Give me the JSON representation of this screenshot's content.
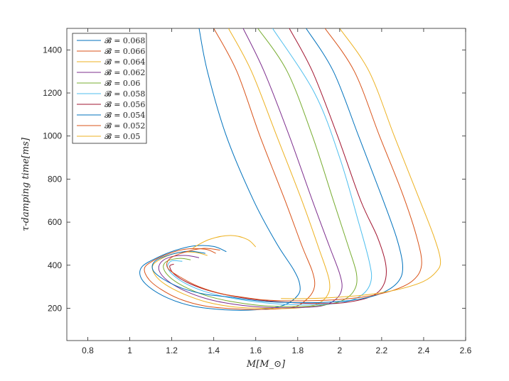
{
  "chart_data": {
    "type": "line",
    "xlabel": "M[M_⊙]",
    "ylabel": "τ-damping time[ms]",
    "xlim": [
      0.7,
      2.6
    ],
    "ylim": [
      50,
      1500
    ],
    "xticks": [
      "0.8",
      "1",
      "1.2",
      "1.4",
      "1.6",
      "1.8",
      "2",
      "2.2",
      "2.4",
      "2.6"
    ],
    "yticks": [
      "200",
      "400",
      "600",
      "800",
      "1000",
      "1200",
      "1400"
    ],
    "legend_position": "top-left",
    "grid": false,
    "series": [
      {
        "name": "𝓑 = 0.068",
        "color": "#0072BD",
        "x": [
          1.46,
          1.4,
          1.31,
          1.22,
          1.13,
          1.06,
          1.05,
          1.09,
          1.18,
          1.3,
          1.45,
          1.6,
          1.73,
          1.8,
          1.81,
          1.78,
          1.7,
          1.59,
          1.46,
          1.37,
          1.33
        ],
        "y": [
          463,
          487,
          490,
          470,
          435,
          395,
          350,
          300,
          248,
          210,
          193,
          193,
          213,
          260,
          310,
          380,
          500,
          700,
          1000,
          1300,
          1500
        ]
      },
      {
        "name": "𝓑 = 0.066",
        "color": "#D95319",
        "x": [
          1.41,
          1.36,
          1.27,
          1.19,
          1.11,
          1.07,
          1.09,
          1.15,
          1.24,
          1.36,
          1.5,
          1.64,
          1.78,
          1.85,
          1.88,
          1.87,
          1.82,
          1.74,
          1.62,
          1.51,
          1.4
        ],
        "y": [
          455,
          474,
          475,
          455,
          420,
          385,
          335,
          287,
          242,
          210,
          197,
          195,
          205,
          248,
          300,
          370,
          490,
          700,
          1000,
          1300,
          1500
        ]
      },
      {
        "name": "𝓑 = 0.064",
        "color": "#EDB120",
        "x": [
          1.37,
          1.31,
          1.23,
          1.16,
          1.11,
          1.12,
          1.17,
          1.26,
          1.37,
          1.5,
          1.64,
          1.78,
          1.88,
          1.94,
          1.95,
          1.9,
          1.82,
          1.7,
          1.58,
          1.47
        ],
        "y": [
          445,
          460,
          458,
          435,
          400,
          355,
          310,
          265,
          228,
          206,
          200,
          200,
          215,
          258,
          330,
          480,
          700,
          1000,
          1300,
          1500
        ]
      },
      {
        "name": "𝓑 = 0.062",
        "color": "#7E2F8E",
        "x": [
          1.33,
          1.27,
          1.2,
          1.15,
          1.14,
          1.18,
          1.26,
          1.37,
          1.5,
          1.64,
          1.78,
          1.91,
          1.98,
          2.01,
          2.0,
          1.95,
          1.87,
          1.76,
          1.64,
          1.54
        ],
        "y": [
          435,
          445,
          440,
          415,
          375,
          328,
          282,
          243,
          218,
          205,
          203,
          210,
          240,
          290,
          360,
          490,
          700,
          1000,
          1300,
          1500
        ]
      },
      {
        "name": "𝓑 = 0.06",
        "color": "#77AC30",
        "x": [
          1.29,
          1.24,
          1.18,
          1.16,
          1.19,
          1.26,
          1.36,
          1.48,
          1.62,
          1.76,
          1.9,
          2.01,
          2.07,
          2.08,
          2.04,
          1.97,
          1.87,
          1.75,
          1.61
        ],
        "y": [
          425,
          432,
          420,
          390,
          345,
          300,
          260,
          232,
          213,
          208,
          212,
          235,
          285,
          360,
          490,
          700,
          1000,
          1300,
          1500
        ]
      },
      {
        "name": "𝓑 = 0.058",
        "color": "#4DBEEE",
        "x": [
          1.25,
          1.2,
          1.18,
          1.2,
          1.26,
          1.35,
          1.47,
          1.6,
          1.74,
          1.88,
          2.02,
          2.11,
          2.15,
          2.14,
          2.09,
          2.0,
          1.88,
          1.68
        ],
        "y": [
          418,
          420,
          395,
          360,
          318,
          280,
          250,
          230,
          218,
          216,
          228,
          265,
          330,
          420,
          600,
          900,
          1200,
          1500
        ]
      },
      {
        "name": "𝓑 = 0.056",
        "color": "#A2142F",
        "x": [
          1.21,
          1.19,
          1.21,
          1.27,
          1.36,
          1.47,
          1.6,
          1.74,
          1.88,
          2.02,
          2.15,
          2.21,
          2.22,
          2.18,
          2.1,
          1.99,
          1.87,
          1.76
        ],
        "y": [
          405,
          395,
          360,
          322,
          287,
          260,
          240,
          228,
          222,
          226,
          255,
          310,
          400,
          530,
          700,
          1000,
          1300,
          1500
        ]
      },
      {
        "name": "𝓑 = 0.054",
        "color": "#0072BD",
        "x": [
          1.48,
          1.56,
          1.67,
          1.8,
          1.94,
          2.08,
          2.2,
          2.28,
          2.3,
          2.27,
          2.2,
          2.09,
          1.97,
          1.84
        ],
        "y": [
          252,
          240,
          230,
          226,
          228,
          240,
          270,
          325,
          400,
          530,
          720,
          1000,
          1300,
          1500
        ]
      },
      {
        "name": "𝓑 = 0.052",
        "color": "#D95319",
        "x": [
          1.62,
          1.72,
          1.85,
          1.99,
          2.13,
          2.26,
          2.35,
          2.39,
          2.37,
          2.3,
          2.19,
          2.07,
          1.93
        ],
        "y": [
          240,
          235,
          235,
          240,
          255,
          285,
          330,
          400,
          520,
          730,
          1000,
          1300,
          1500
        ]
      },
      {
        "name": "𝓑 = 0.05",
        "color": "#EDB120",
        "x": [
          1.72,
          1.85,
          2.0,
          2.15,
          2.29,
          2.4,
          2.46,
          2.48,
          2.45,
          2.37,
          2.26,
          2.14,
          2.0
        ],
        "y": [
          245,
          245,
          252,
          265,
          290,
          325,
          370,
          420,
          530,
          730,
          1000,
          1300,
          1500
        ]
      }
    ],
    "extra_segments": [
      {
        "series": 9,
        "x": [
          1.3,
          1.38,
          1.48,
          1.56,
          1.6
        ],
        "y": [
          480,
          520,
          538,
          520,
          485
        ]
      },
      {
        "series": 7,
        "x": [
          1.36,
          1.28,
          1.19,
          1.12,
          1.11,
          1.16,
          1.25,
          1.36,
          1.48
        ],
        "y": [
          455,
          465,
          448,
          418,
          378,
          335,
          293,
          265,
          252
        ]
      },
      {
        "series": 8,
        "x": [
          1.43,
          1.35,
          1.26,
          1.19,
          1.18,
          1.24,
          1.33,
          1.45,
          1.62
        ],
        "y": [
          470,
          478,
          460,
          430,
          388,
          345,
          300,
          265,
          240
        ]
      }
    ]
  }
}
